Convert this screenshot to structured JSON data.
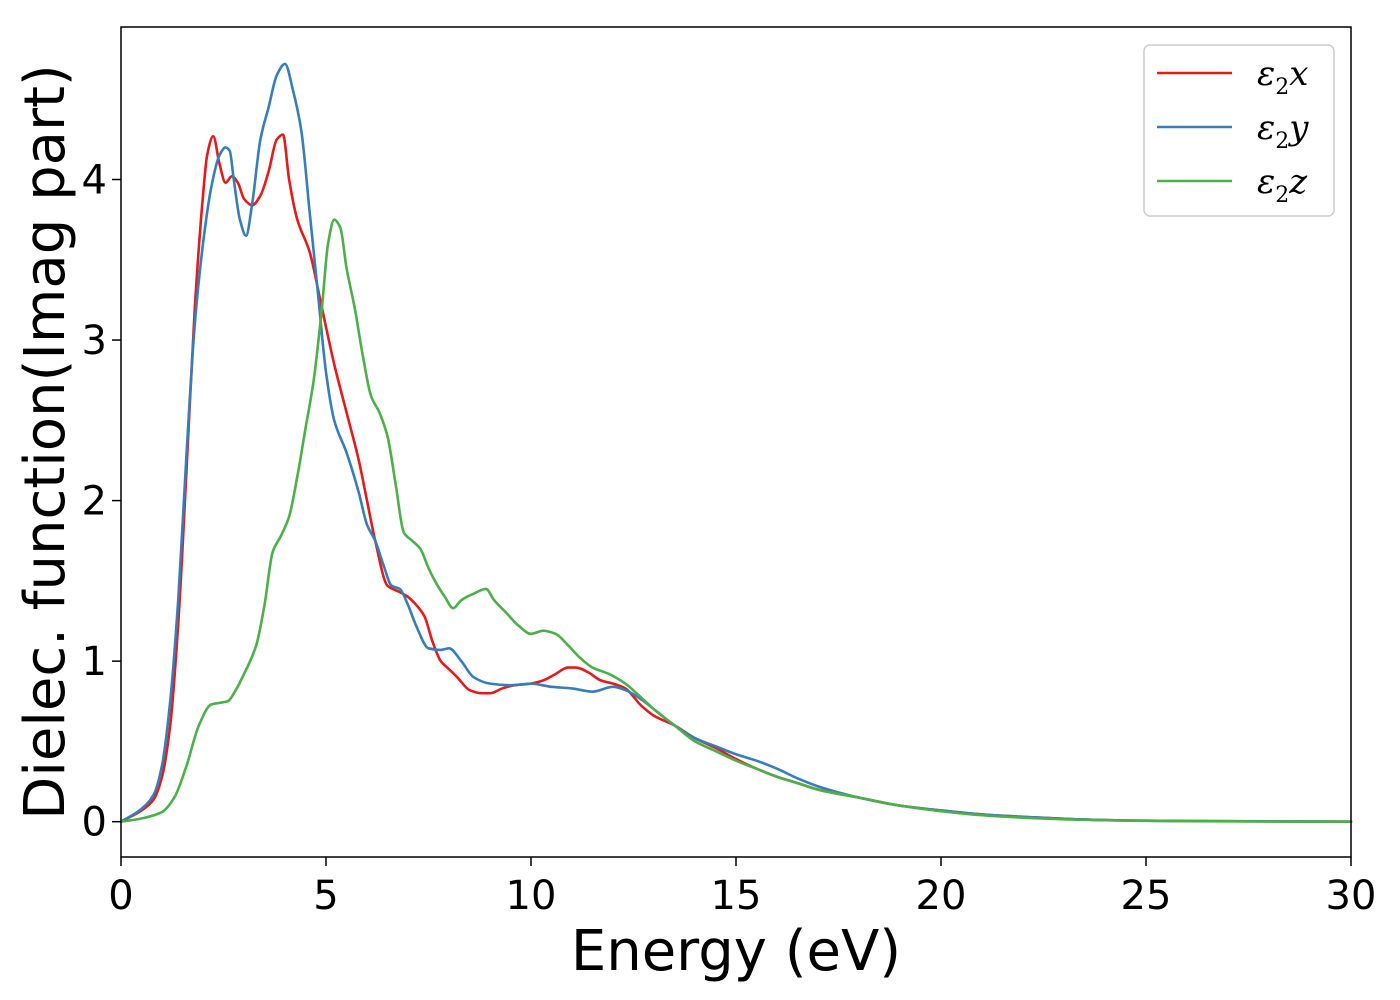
{
  "chart_data": {
    "type": "line",
    "title": "",
    "xlabel": "Energy (eV)",
    "ylabel": "Dielec. function(Imag part)",
    "xlim": [
      0,
      30
    ],
    "ylim": [
      -0.22,
      4.95
    ],
    "xticks": [
      0,
      5,
      10,
      15,
      20,
      25,
      30
    ],
    "xtick_labels": [
      "0",
      "5",
      "10",
      "15",
      "20",
      "25",
      "30"
    ],
    "yticks": [
      0,
      1,
      2,
      3,
      4
    ],
    "ytick_labels": [
      "0",
      "1",
      "2",
      "3",
      "4"
    ],
    "grid": false,
    "legend_position": "top-right",
    "series": [
      {
        "name": "ε2x",
        "legend": {
          "base": "ε",
          "sub": "2",
          "tail": "x"
        },
        "color": "#e41a1c",
        "x": [
          0,
          0.5,
          0.8,
          1.0,
          1.2,
          1.4,
          1.6,
          1.8,
          2.0,
          2.1,
          2.25,
          2.4,
          2.55,
          2.7,
          2.85,
          3.0,
          3.2,
          3.4,
          3.6,
          3.8,
          3.95,
          4.1,
          4.3,
          4.6,
          4.9,
          5.2,
          5.5,
          5.8,
          6.0,
          6.2,
          6.5,
          6.8,
          7.0,
          7.2,
          7.4,
          7.6,
          7.8,
          8.0,
          8.2,
          8.5,
          8.8,
          9.0,
          9.3,
          9.6,
          10.0,
          10.3,
          10.6,
          10.9,
          11.1,
          11.4,
          11.7,
          12.0,
          12.3,
          12.7,
          13.0,
          13.5,
          14.0,
          14.5,
          15.0,
          15.5,
          16.0,
          16.5,
          17.0,
          18.0,
          19.0,
          20.0,
          21.0,
          22.0,
          23.0,
          24.0,
          25.0,
          27.0,
          30.0
        ],
        "y": [
          0,
          0.07,
          0.14,
          0.28,
          0.6,
          1.25,
          2.2,
          3.2,
          3.9,
          4.15,
          4.27,
          4.1,
          3.98,
          4.02,
          3.98,
          3.88,
          3.84,
          3.9,
          4.05,
          4.25,
          4.28,
          4.0,
          3.75,
          3.55,
          3.2,
          2.85,
          2.55,
          2.25,
          2.0,
          1.75,
          1.47,
          1.43,
          1.4,
          1.35,
          1.28,
          1.12,
          1.0,
          0.95,
          0.9,
          0.82,
          0.8,
          0.8,
          0.83,
          0.85,
          0.86,
          0.88,
          0.92,
          0.96,
          0.96,
          0.93,
          0.88,
          0.86,
          0.83,
          0.72,
          0.66,
          0.6,
          0.52,
          0.46,
          0.39,
          0.33,
          0.28,
          0.24,
          0.2,
          0.15,
          0.1,
          0.07,
          0.045,
          0.03,
          0.018,
          0.01,
          0.006,
          0.003,
          0.0
        ]
      },
      {
        "name": "ε2y",
        "legend": {
          "base": "ε",
          "sub": "2",
          "tail": "y"
        },
        "color": "#377eb8",
        "x": [
          0,
          0.5,
          0.8,
          1.0,
          1.2,
          1.4,
          1.6,
          1.8,
          2.0,
          2.2,
          2.4,
          2.55,
          2.65,
          2.75,
          2.9,
          3.05,
          3.2,
          3.4,
          3.6,
          3.8,
          4.0,
          4.2,
          4.4,
          4.6,
          4.8,
          5.0,
          5.2,
          5.5,
          5.8,
          6.0,
          6.2,
          6.4,
          6.6,
          6.8,
          7.0,
          7.2,
          7.5,
          7.8,
          8.0,
          8.3,
          8.6,
          9.0,
          9.5,
          10.0,
          10.5,
          11.0,
          11.5,
          12.0,
          12.3,
          12.7,
          13.0,
          13.5,
          14.0,
          14.5,
          15.0,
          15.5,
          16.0,
          16.5,
          17.0,
          18.0,
          19.0,
          20.0,
          21.0,
          22.0,
          23.0,
          24.0,
          25.0,
          27.0,
          30.0
        ],
        "y": [
          0,
          0.08,
          0.17,
          0.35,
          0.75,
          1.4,
          2.3,
          3.1,
          3.6,
          3.95,
          4.15,
          4.2,
          4.18,
          4.0,
          3.75,
          3.65,
          3.85,
          4.25,
          4.45,
          4.65,
          4.72,
          4.55,
          4.3,
          3.8,
          3.3,
          2.8,
          2.5,
          2.3,
          2.05,
          1.85,
          1.75,
          1.6,
          1.47,
          1.45,
          1.35,
          1.22,
          1.08,
          1.07,
          1.08,
          1.0,
          0.9,
          0.86,
          0.85,
          0.86,
          0.84,
          0.83,
          0.81,
          0.84,
          0.82,
          0.76,
          0.7,
          0.6,
          0.52,
          0.47,
          0.42,
          0.38,
          0.33,
          0.27,
          0.22,
          0.15,
          0.1,
          0.07,
          0.045,
          0.03,
          0.018,
          0.01,
          0.006,
          0.003,
          0.0
        ]
      },
      {
        "name": "ε2z",
        "legend": {
          "base": "ε",
          "sub": "2",
          "tail": "z"
        },
        "color": "#4daf4a",
        "x": [
          0,
          0.5,
          1.0,
          1.3,
          1.6,
          1.9,
          2.2,
          2.4,
          2.6,
          2.8,
          3.0,
          3.3,
          3.5,
          3.7,
          3.9,
          4.1,
          4.3,
          4.5,
          4.7,
          4.9,
          5.05,
          5.2,
          5.35,
          5.5,
          5.7,
          5.9,
          6.1,
          6.3,
          6.5,
          6.7,
          6.9,
          7.1,
          7.3,
          7.5,
          7.7,
          7.9,
          8.1,
          8.3,
          8.6,
          8.9,
          9.1,
          9.4,
          9.7,
          10.0,
          10.3,
          10.6,
          10.9,
          11.2,
          11.5,
          11.9,
          12.3,
          12.7,
          13.0,
          13.5,
          14.0,
          14.5,
          15.0,
          15.5,
          16.0,
          16.5,
          17.0,
          18.0,
          19.0,
          20.0,
          21.0,
          22.0,
          23.0,
          24.0,
          25.0,
          27.0,
          30.0
        ],
        "y": [
          0,
          0.02,
          0.06,
          0.15,
          0.35,
          0.6,
          0.73,
          0.74,
          0.75,
          0.82,
          0.92,
          1.1,
          1.35,
          1.68,
          1.78,
          1.9,
          2.15,
          2.45,
          2.75,
          3.2,
          3.6,
          3.75,
          3.7,
          3.45,
          3.2,
          2.9,
          2.65,
          2.55,
          2.4,
          2.1,
          1.8,
          1.75,
          1.7,
          1.58,
          1.48,
          1.4,
          1.33,
          1.38,
          1.42,
          1.45,
          1.38,
          1.3,
          1.22,
          1.17,
          1.19,
          1.17,
          1.1,
          1.02,
          0.96,
          0.92,
          0.86,
          0.77,
          0.7,
          0.6,
          0.5,
          0.44,
          0.38,
          0.33,
          0.28,
          0.24,
          0.2,
          0.15,
          0.1,
          0.065,
          0.04,
          0.025,
          0.015,
          0.009,
          0.005,
          0.002,
          0.0
        ]
      }
    ]
  }
}
